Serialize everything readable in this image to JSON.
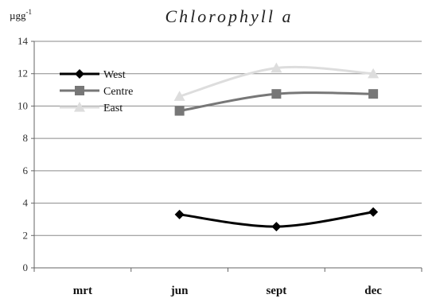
{
  "chart_data": {
    "type": "line",
    "title": "Chlorophyll a",
    "ylabel": "µgg",
    "ylabel_superscript": "-1",
    "xlabel": "",
    "categories": [
      "mrt",
      "jun",
      "sept",
      "dec"
    ],
    "ylim": [
      0,
      14
    ],
    "yticks": [
      0,
      2,
      4,
      6,
      8,
      10,
      12,
      14
    ],
    "grid": true,
    "legend_position": "top-left",
    "series": [
      {
        "name": "West",
        "values": [
          null,
          3.3,
          2.55,
          3.45
        ],
        "color": "#000000",
        "marker": "diamond"
      },
      {
        "name": "Centre",
        "values": [
          null,
          9.7,
          10.75,
          10.75
        ],
        "color": "#777777",
        "marker": "square"
      },
      {
        "name": "East",
        "values": [
          null,
          10.6,
          12.35,
          12.0
        ],
        "color": "#dddddd",
        "marker": "triangle"
      }
    ]
  }
}
